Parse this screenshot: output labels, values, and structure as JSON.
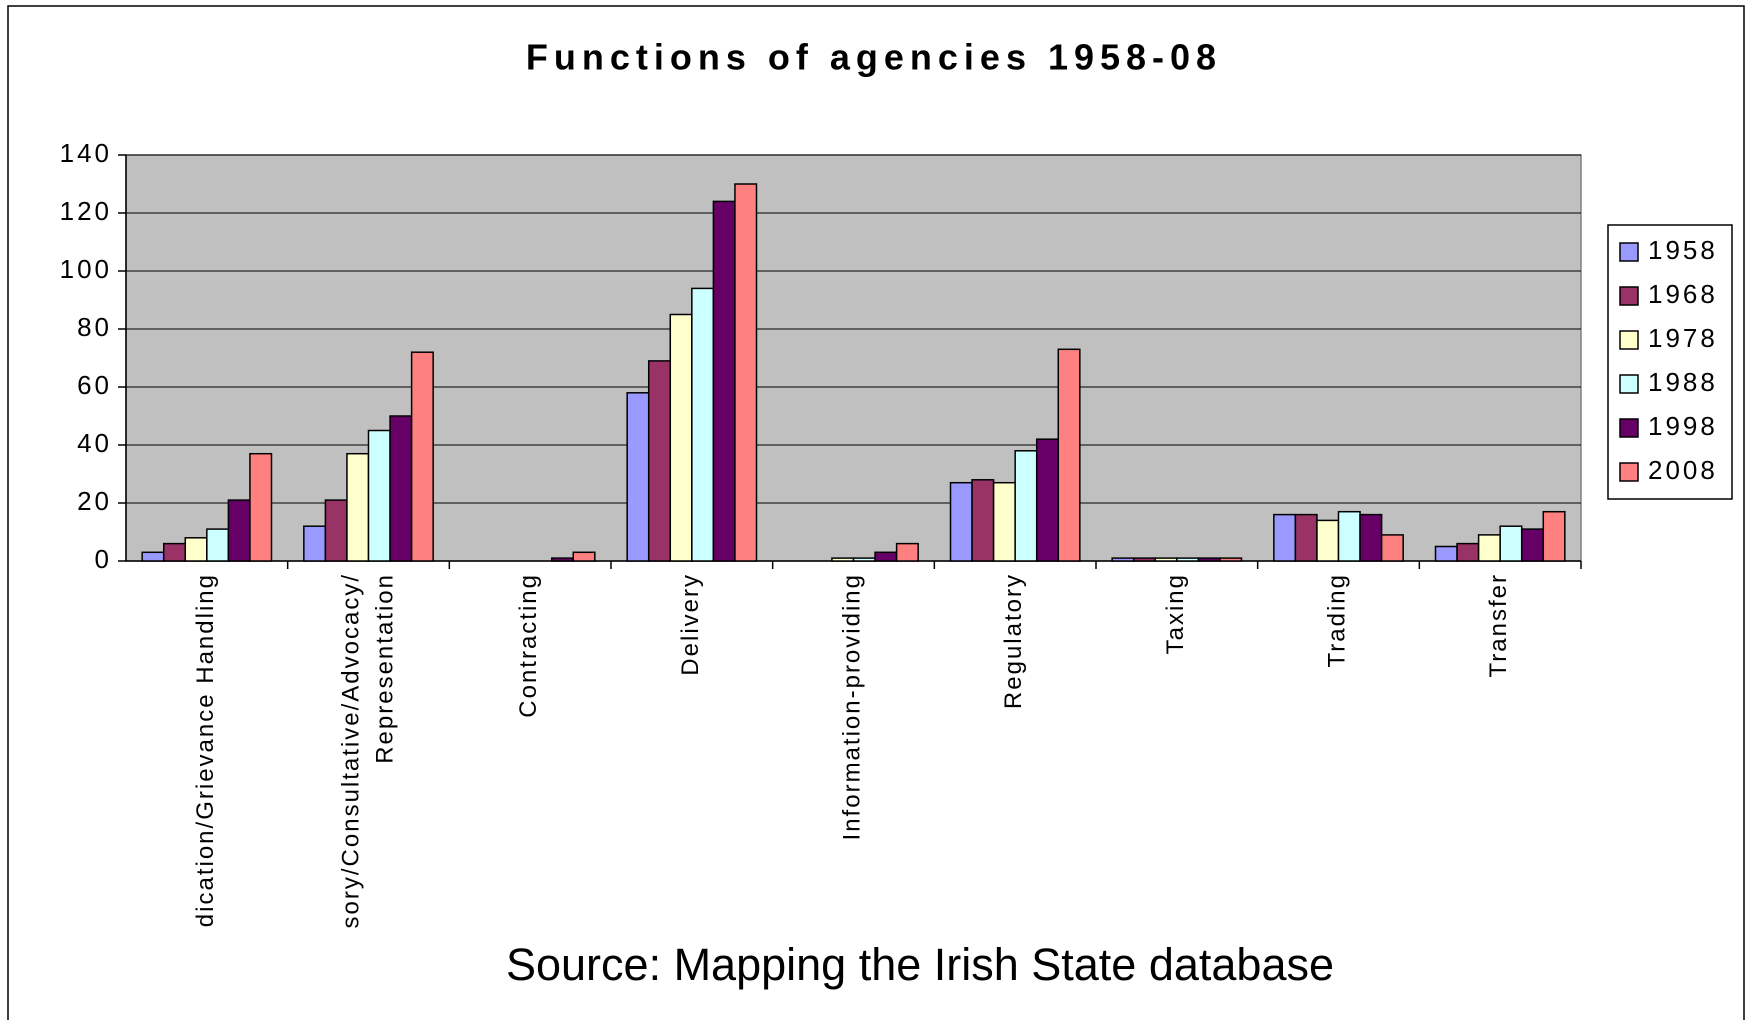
{
  "chart_data": {
    "type": "bar",
    "title": "Functions of agencies 1958-08",
    "source": "Source: Mapping the Irish State database",
    "categories": [
      "dication/Grievance Handling",
      "sory/Consultative/Advocacy/\nRepresentation",
      "Contracting",
      "Delivery",
      "Information-providing",
      "Regulatory",
      "Taxing",
      "Trading",
      "Transfer"
    ],
    "series": [
      {
        "name": "1958",
        "color": "#9999ff",
        "values": [
          3,
          12,
          0,
          58,
          0,
          27,
          1,
          16,
          5
        ]
      },
      {
        "name": "1968",
        "color": "#993366",
        "values": [
          6,
          21,
          0,
          69,
          0,
          28,
          1,
          16,
          6
        ]
      },
      {
        "name": "1978",
        "color": "#ffffcc",
        "values": [
          8,
          37,
          0,
          85,
          1,
          27,
          1,
          14,
          9
        ]
      },
      {
        "name": "1988",
        "color": "#ccffff",
        "values": [
          11,
          45,
          0,
          94,
          1,
          38,
          1,
          17,
          12
        ]
      },
      {
        "name": "1998",
        "color": "#660066",
        "values": [
          21,
          50,
          1,
          124,
          3,
          42,
          1,
          16,
          11
        ]
      },
      {
        "name": "2008",
        "color": "#ff8080",
        "values": [
          37,
          72,
          3,
          130,
          6,
          73,
          1,
          9,
          17
        ]
      }
    ],
    "ylim": [
      0,
      140
    ],
    "yticks": [
      0,
      20,
      40,
      60,
      80,
      100,
      120,
      140
    ],
    "grid": true,
    "legend": "right",
    "plot_background": "#c0c0c0"
  }
}
